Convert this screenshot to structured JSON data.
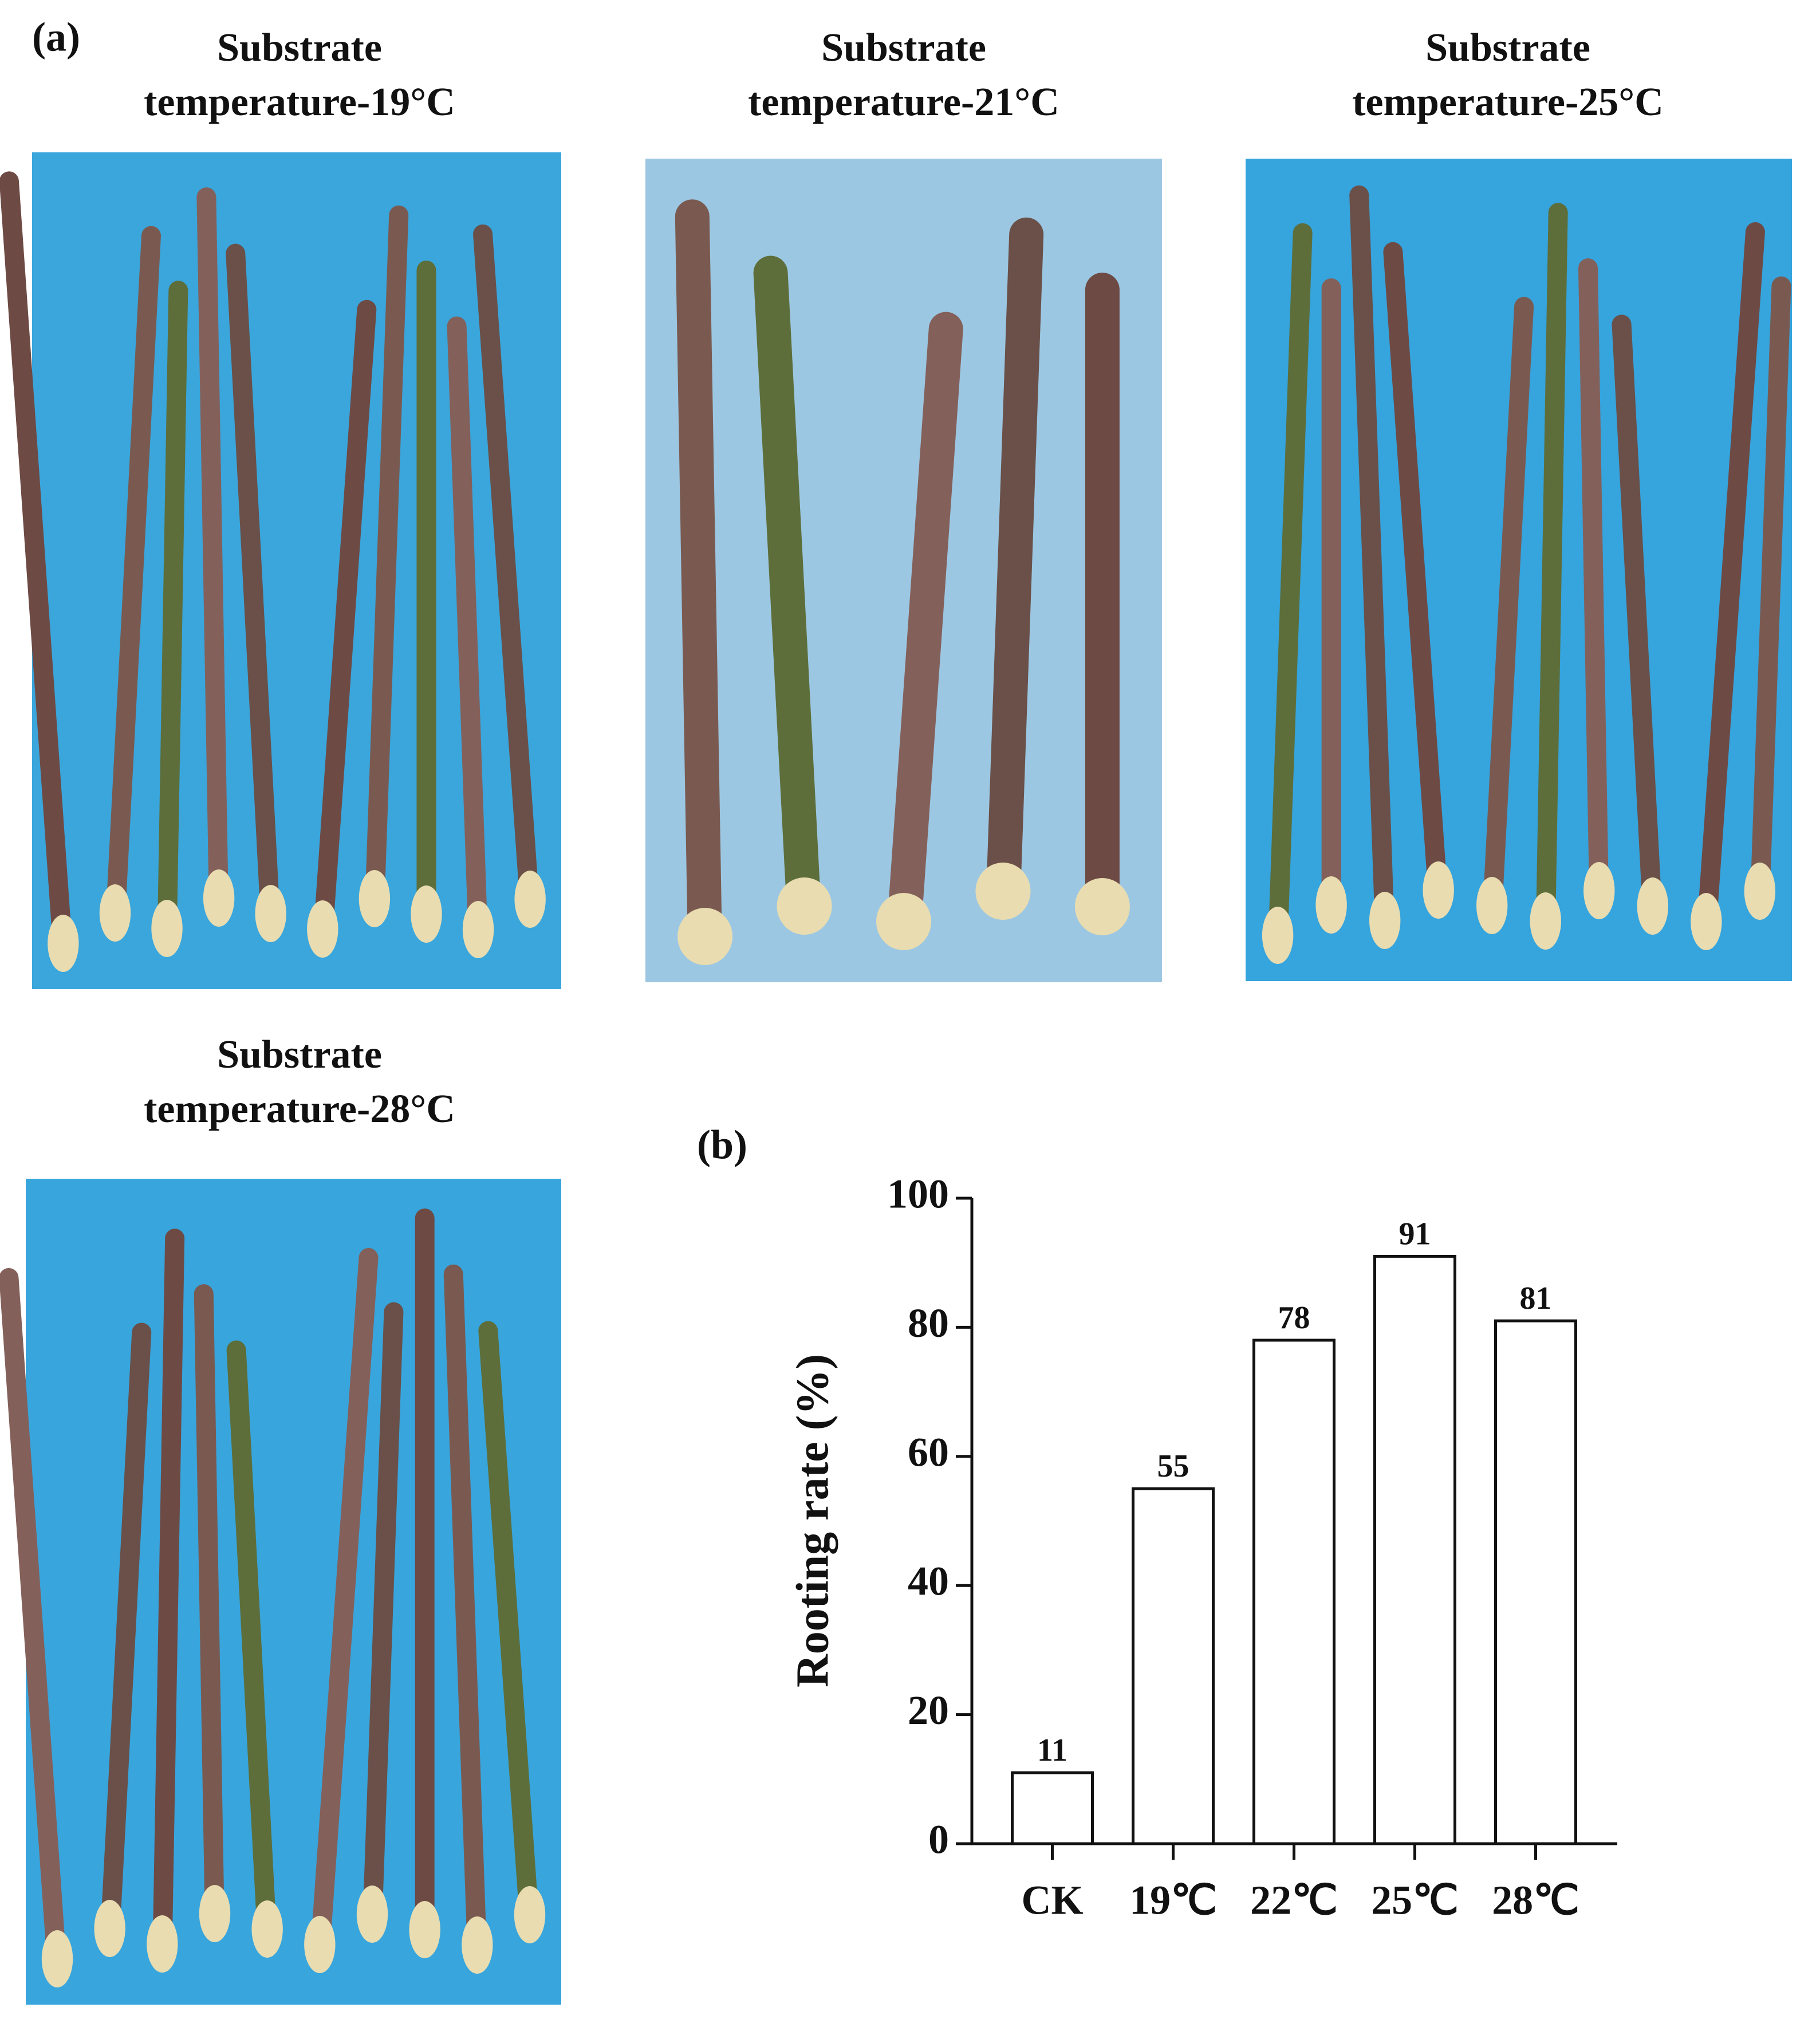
{
  "figure": {
    "panel_label": "(a)",
    "photos": [
      {
        "title": [
          "Substrate",
          "temperature-19°C"
        ]
      },
      {
        "title": [
          "Substrate",
          "temperature-21°C"
        ]
      },
      {
        "title": [
          "Substrate",
          "temperature-25°C"
        ]
      },
      {
        "title": [
          "Substrate",
          "temperature-28°C"
        ]
      }
    ]
  },
  "chart_data": {
    "type": "bar",
    "panel_label": "(b)",
    "ylabel": "Rooting rate (%)",
    "categories": [
      "CK",
      "19℃",
      "22℃",
      "25℃",
      "28℃"
    ],
    "values": [
      11,
      55,
      78,
      91,
      81
    ],
    "color": "#ffffff",
    "ylim": [
      0,
      100
    ],
    "yticks": [
      0,
      20,
      40,
      60,
      80,
      100
    ],
    "grid": false
  }
}
